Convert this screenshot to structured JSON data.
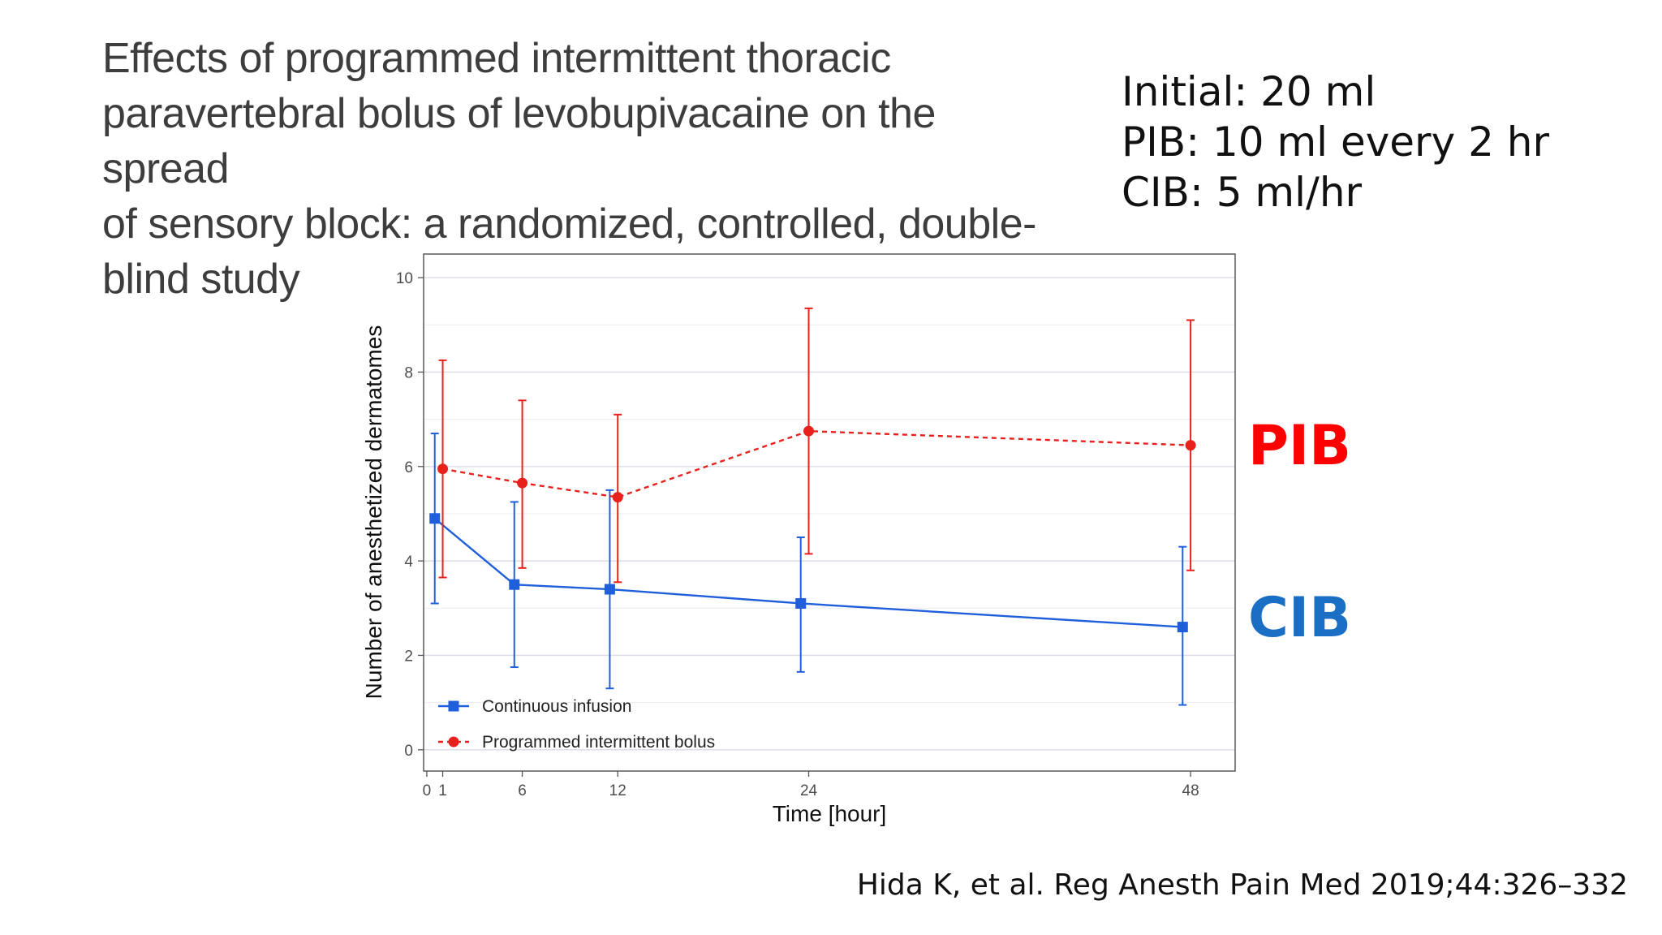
{
  "paper_title_lines": [
    "Effects of programmed intermittent thoracic",
    "paravertebral bolus of levobupivacaine on the spread",
    "of sensory block: a randomized, controlled, double-",
    "blind study"
  ],
  "protocol": {
    "initial": "Initial: 20 ml",
    "pib": "PIB: 10 ml every 2 hr",
    "cib": "CIB: 5 ml/hr"
  },
  "labels": {
    "pib": "PIB",
    "cib": "CIB"
  },
  "citation": "Hida K, et al. Reg Anesth Pain Med 2019;44:326–332",
  "colors": {
    "pib": "#e8211c",
    "cib": "#1f5fdc",
    "pib_label": "#ff0000",
    "cib_label": "#1a6fc4"
  },
  "chart_data": {
    "type": "line",
    "title": "",
    "xlabel": "Time [hour]",
    "ylabel": "Number of anesthetized dermatomes",
    "xlim": [
      -0.2,
      50.8
    ],
    "ylim": [
      -0.45,
      10.5
    ],
    "x_ticks": [
      0,
      1,
      6,
      12,
      24,
      48
    ],
    "y_ticks": [
      0,
      2,
      4,
      6,
      8,
      10
    ],
    "grid": true,
    "legend_position": "bottom-left",
    "series": [
      {
        "name": "Continuous infusion",
        "line_style": "solid",
        "marker": "square",
        "x": [
          0.5,
          5.5,
          11.5,
          23.5,
          47.5
        ],
        "y": [
          4.9,
          3.5,
          3.4,
          3.1,
          2.6
        ],
        "error_low": [
          3.1,
          1.75,
          1.3,
          1.65,
          0.95
        ],
        "error_high": [
          6.7,
          5.25,
          5.5,
          4.5,
          4.3
        ]
      },
      {
        "name": "Programmed intermittent bolus",
        "line_style": "dashed",
        "marker": "circle",
        "x": [
          1,
          6,
          12,
          24,
          48
        ],
        "y": [
          5.95,
          5.65,
          5.35,
          6.75,
          6.45
        ],
        "error_low": [
          3.65,
          3.85,
          3.55,
          4.15,
          3.8
        ],
        "error_high": [
          8.25,
          7.4,
          7.1,
          9.35,
          9.1
        ]
      }
    ]
  }
}
